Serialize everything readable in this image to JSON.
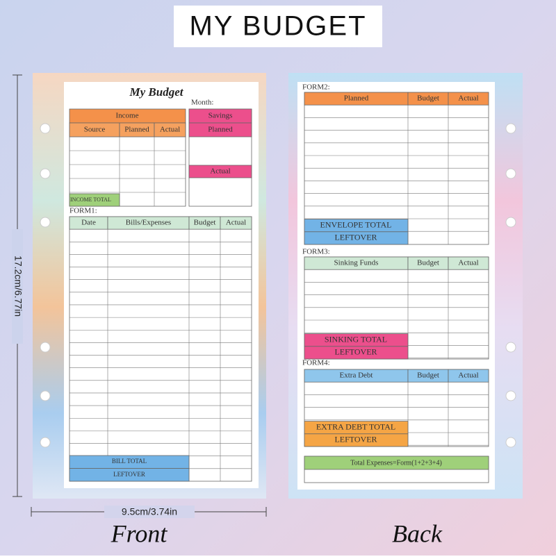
{
  "header": {
    "title": "MY BUDGET"
  },
  "dimensions": {
    "height": "17.2cm/6.77in",
    "width": "9.5cm/3.74in"
  },
  "labels": {
    "front": "Front",
    "back": "Back"
  },
  "front": {
    "title": "My Budget",
    "month": "Month:",
    "income": {
      "title": "Income",
      "columns": [
        "Source",
        "Planned",
        "Actual"
      ],
      "total": "INCOME TOTAL"
    },
    "savings": {
      "title": "Savings",
      "planned": "Planned",
      "actual": "Actual"
    },
    "form1": {
      "label": "FORM1:",
      "columns": [
        "Date",
        "Bills/Expenses",
        "Budget",
        "Actual"
      ],
      "total": "BILL TOTAL",
      "leftover": "LEFTOVER"
    }
  },
  "back": {
    "form2": {
      "label": "FORM2:",
      "columns": [
        "Planned",
        "Budget",
        "Actual"
      ],
      "total": "ENVELOPE TOTAL",
      "leftover": "LEFTOVER"
    },
    "form3": {
      "label": "FORM3:",
      "columns": [
        "Sinking Funds",
        "Budget",
        "Actual"
      ],
      "total": "SINKING TOTAL",
      "leftover": "LEFTOVER"
    },
    "form4": {
      "label": "FORM4:",
      "columns": [
        "Extra Debt",
        "Budget",
        "Actual"
      ],
      "total": "EXTRA DEBT TOTAL",
      "leftover": "LEFTOVER"
    },
    "summary": "Total Expenses=Form(1+2+3+4)"
  }
}
